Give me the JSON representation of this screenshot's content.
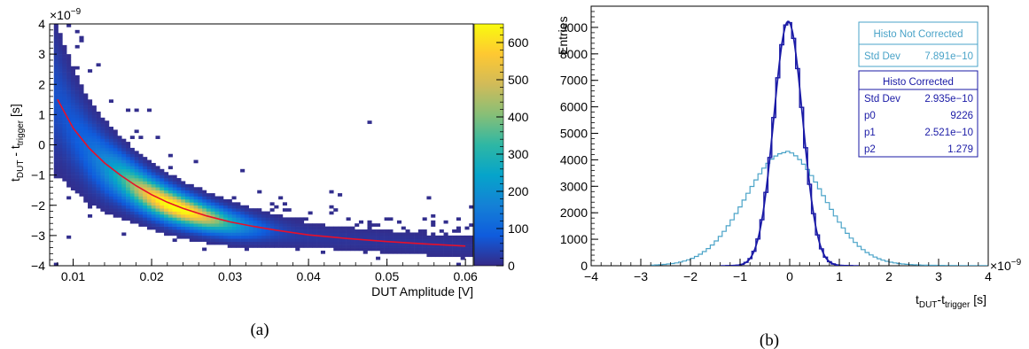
{
  "chart_data": [
    {
      "type": "heatmap",
      "panel_label": "(a)",
      "xlabel": "DUT Amplitude [V]",
      "ylabel_main": "t",
      "ylabel_sub1": "DUT",
      "ylabel_mid": " - t",
      "ylabel_sub2": "trigger",
      "ylabel_unit": " [s]",
      "y_exponent_base": "×10",
      "y_exponent": "−9",
      "xlim": [
        0.007,
        0.061
      ],
      "ylim": [
        -4,
        4
      ],
      "x_ticks": [
        0.01,
        0.02,
        0.03,
        0.04,
        0.05,
        0.06
      ],
      "x_tick_labels": [
        "0.01",
        "0.02",
        "0.03",
        "0.04",
        "0.05",
        "0.06"
      ],
      "y_ticks": [
        -4,
        -3,
        -2,
        -1,
        0,
        1,
        2,
        3,
        4
      ],
      "y_tick_labels": [
        "−4",
        "−3",
        "−2",
        "−1",
        "0",
        "1",
        "2",
        "3",
        "4"
      ],
      "colorbar_range": [
        0,
        650
      ],
      "colorbar_ticks": [
        0,
        100,
        200,
        300,
        400,
        500,
        600
      ],
      "colorbar_tick_labels": [
        "0",
        "100",
        "200",
        "300",
        "400",
        "500",
        "600"
      ],
      "fit_curve": {
        "color": "#e8102a",
        "x": [
          0.008,
          0.01,
          0.012,
          0.014,
          0.016,
          0.018,
          0.02,
          0.022,
          0.024,
          0.027,
          0.03,
          0.033,
          0.036,
          0.04,
          0.045,
          0.05,
          0.055,
          0.06
        ],
        "y": [
          1.5,
          0.55,
          -0.1,
          -0.6,
          -1.0,
          -1.35,
          -1.65,
          -1.9,
          -2.1,
          -2.35,
          -2.55,
          -2.7,
          -2.83,
          -2.98,
          -3.1,
          -3.2,
          -3.28,
          -3.35
        ]
      },
      "band_mean": {
        "x": [
          0.008,
          0.01,
          0.012,
          0.014,
          0.016,
          0.018,
          0.02,
          0.022,
          0.024,
          0.027,
          0.03,
          0.033,
          0.036,
          0.04,
          0.045,
          0.05,
          0.055,
          0.06
        ],
        "y": [
          1.5,
          0.5,
          -0.2,
          -0.7,
          -1.05,
          -1.4,
          -1.7,
          -1.95,
          -2.15,
          -2.4,
          -2.6,
          -2.75,
          -2.85,
          -3.0,
          -3.1,
          -3.2,
          -3.3,
          -3.35
        ]
      }
    },
    {
      "type": "line",
      "panel_label": "(b)",
      "xlabel_main": "t",
      "xlabel_sub1": "DUT",
      "xlabel_mid": "-t",
      "xlabel_sub2": "trigger",
      "xlabel_unit": " [s]",
      "x_exponent_base": "×10",
      "x_exponent": "−9",
      "ylabel": "Entries",
      "xlim": [
        -4,
        4
      ],
      "ylim": [
        0,
        9800
      ],
      "x_ticks": [
        -4,
        -3,
        -2,
        -1,
        0,
        1,
        2,
        3,
        4
      ],
      "x_tick_labels": [
        "−4",
        "−3",
        "−2",
        "−1",
        "0",
        "1",
        "2",
        "3",
        "4"
      ],
      "y_ticks": [
        0,
        1000,
        2000,
        3000,
        4000,
        5000,
        6000,
        7000,
        8000,
        9000
      ],
      "y_tick_labels": [
        "0",
        "1000",
        "2000",
        "3000",
        "4000",
        "5000",
        "6000",
        "7000",
        "8000",
        "9000"
      ],
      "series": [
        {
          "name": "Histo Not Corrected",
          "color": "#4aa3c8",
          "kind": "gaussian",
          "amplitude": 4150,
          "mean": -0.1,
          "sigma": 0.79,
          "tail_level": 150,
          "tail_decay": 1.1
        },
        {
          "name": "Histo Corrected",
          "color": "#1a1aa6",
          "kind": "gaussian",
          "amplitude": 9226,
          "mean": -0.03,
          "sigma": 0.29,
          "tail_level": 0,
          "tail_decay": 1.0
        }
      ],
      "stats_box_1": {
        "title": "Histo Not Corrected",
        "rows": [
          {
            "name": "Std Dev",
            "value": "7.891e−10"
          }
        ]
      },
      "stats_box_2": {
        "title": "Histo Corrected",
        "rows": [
          {
            "name": "Std Dev",
            "value": "2.935e−10"
          },
          {
            "name": "p0",
            "value": "9226"
          },
          {
            "name": "p1",
            "value": "2.521e−10"
          },
          {
            "name": "p2",
            "value": "1.279"
          }
        ]
      }
    }
  ]
}
